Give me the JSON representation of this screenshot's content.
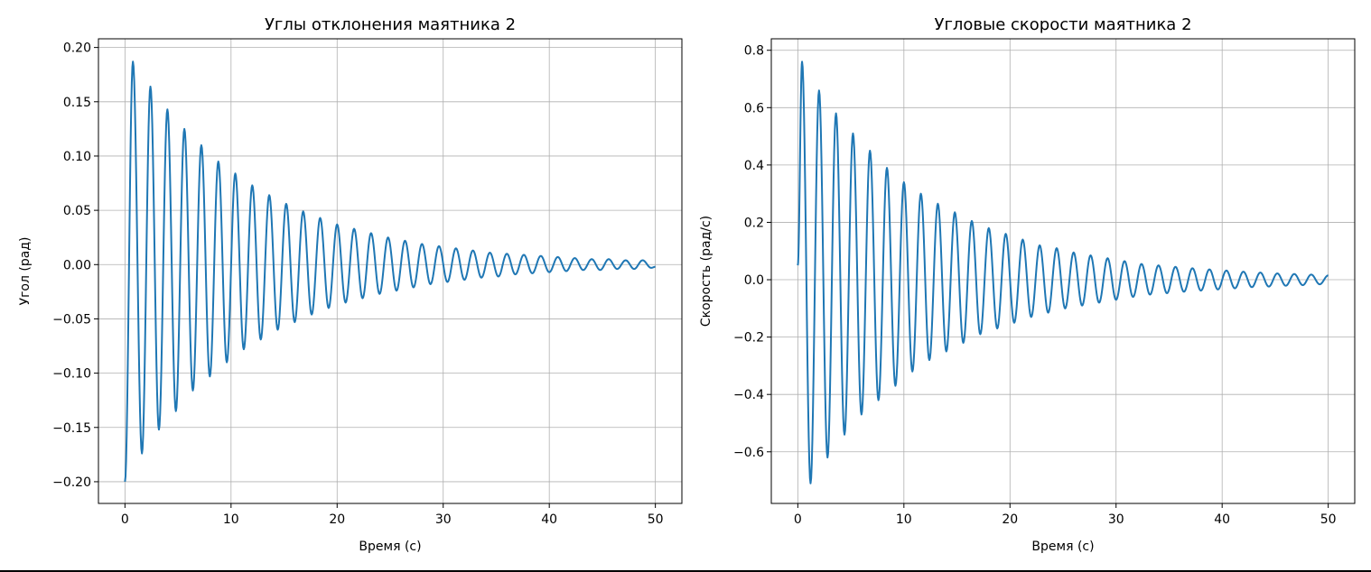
{
  "chart_data": [
    {
      "type": "line",
      "title": "Углы отклонения маятника 2",
      "xlabel": "Время (с)",
      "ylabel": "Угол (рад)",
      "xlim": [
        -2.5,
        52.5
      ],
      "ylim": [
        -0.22,
        0.208
      ],
      "xticks": [
        0,
        10,
        20,
        30,
        40,
        50
      ],
      "yticks": [
        -0.2,
        -0.15,
        -0.1,
        -0.05,
        0.0,
        0.05,
        0.1,
        0.15,
        0.2
      ],
      "ytick_labels": [
        "−0.20",
        "−0.15",
        "−0.10",
        "−0.05",
        "0.00",
        "0.05",
        "0.10",
        "0.15",
        "0.20"
      ],
      "grid": true,
      "line_color": "#1f77b4",
      "series": [
        {
          "x": [
            0,
            0.75,
            1.6,
            2.4,
            3.2,
            4.0,
            4.8,
            5.6,
            6.4,
            7.2,
            8.0,
            8.8,
            9.6,
            10.4,
            11.2,
            12.0,
            12.8,
            13.6,
            14.4,
            15.2,
            16.0,
            16.8,
            17.6,
            18.4,
            19.2,
            20.0,
            20.8,
            21.6,
            22.4,
            23.2,
            24.0,
            24.8,
            25.6,
            26.4,
            27.2,
            28.0,
            28.8,
            29.6,
            30.4,
            31.2,
            32.0,
            32.8,
            33.6,
            34.4,
            35.2,
            36.0,
            36.8,
            37.6,
            38.4,
            39.2,
            40.0,
            40.8,
            41.6,
            42.4,
            43.2,
            44.0,
            44.8,
            45.6,
            46.4,
            47.2,
            48.0,
            48.8,
            49.6,
            50.0
          ],
          "y": [
            -0.2,
            0.187,
            -0.174,
            0.164,
            -0.152,
            0.143,
            -0.135,
            0.125,
            -0.116,
            0.11,
            -0.103,
            0.095,
            -0.09,
            0.084,
            -0.078,
            0.073,
            -0.069,
            0.064,
            -0.06,
            0.056,
            -0.053,
            0.049,
            -0.046,
            0.043,
            -0.04,
            0.037,
            -0.035,
            0.033,
            -0.031,
            0.029,
            -0.027,
            0.025,
            -0.024,
            0.022,
            -0.021,
            0.019,
            -0.018,
            0.017,
            -0.016,
            0.015,
            -0.014,
            0.013,
            -0.012,
            0.011,
            -0.011,
            0.01,
            -0.009,
            0.009,
            -0.008,
            0.008,
            -0.007,
            0.007,
            -0.006,
            0.006,
            -0.005,
            0.005,
            -0.005,
            0.005,
            -0.004,
            0.004,
            -0.004,
            0.004,
            -0.003,
            -0.002
          ]
        }
      ]
    },
    {
      "type": "line",
      "title": "Угловые скорости маятника 2",
      "xlabel": "Время (с)",
      "ylabel": "Скорость (рад/с)",
      "xlim": [
        -2.5,
        52.5
      ],
      "ylim": [
        -0.78,
        0.84
      ],
      "xticks": [
        0,
        10,
        20,
        30,
        40,
        50
      ],
      "yticks": [
        -0.6,
        -0.4,
        -0.2,
        0.0,
        0.2,
        0.4,
        0.6,
        0.8
      ],
      "ytick_labels": [
        "−0.6",
        "−0.4",
        "−0.2",
        "0.0",
        "0.2",
        "0.4",
        "0.6",
        "0.8"
      ],
      "grid": true,
      "line_color": "#1f77b4",
      "series": [
        {
          "x": [
            0,
            0.4,
            1.2,
            2.0,
            2.8,
            3.6,
            4.4,
            5.2,
            6.0,
            6.8,
            7.6,
            8.4,
            9.2,
            10.0,
            10.8,
            11.6,
            12.4,
            13.2,
            14.0,
            14.8,
            15.6,
            16.4,
            17.2,
            18.0,
            18.8,
            19.6,
            20.4,
            21.2,
            22.0,
            22.8,
            23.6,
            24.4,
            25.2,
            26.0,
            26.8,
            27.6,
            28.4,
            29.2,
            30.0,
            30.8,
            31.6,
            32.4,
            33.2,
            34.0,
            34.8,
            35.6,
            36.4,
            37.2,
            38.0,
            38.8,
            39.6,
            40.4,
            41.2,
            42.0,
            42.8,
            43.6,
            44.4,
            45.2,
            46.0,
            46.8,
            47.6,
            48.4,
            49.2,
            50.0
          ],
          "y": [
            0.05,
            0.76,
            -0.71,
            0.66,
            -0.62,
            0.58,
            -0.54,
            0.51,
            -0.47,
            0.45,
            -0.42,
            0.39,
            -0.37,
            0.34,
            -0.32,
            0.3,
            -0.28,
            0.265,
            -0.25,
            0.235,
            -0.22,
            0.205,
            -0.19,
            0.18,
            -0.17,
            0.16,
            -0.15,
            0.14,
            -0.13,
            0.12,
            -0.115,
            0.11,
            -0.1,
            0.095,
            -0.09,
            0.085,
            -0.08,
            0.075,
            -0.07,
            0.065,
            -0.06,
            0.055,
            -0.052,
            0.05,
            -0.047,
            0.045,
            -0.042,
            0.04,
            -0.038,
            0.036,
            -0.034,
            0.032,
            -0.03,
            0.028,
            -0.026,
            0.025,
            -0.024,
            0.022,
            -0.021,
            0.02,
            -0.019,
            0.018,
            -0.016,
            0.015
          ]
        }
      ]
    }
  ]
}
